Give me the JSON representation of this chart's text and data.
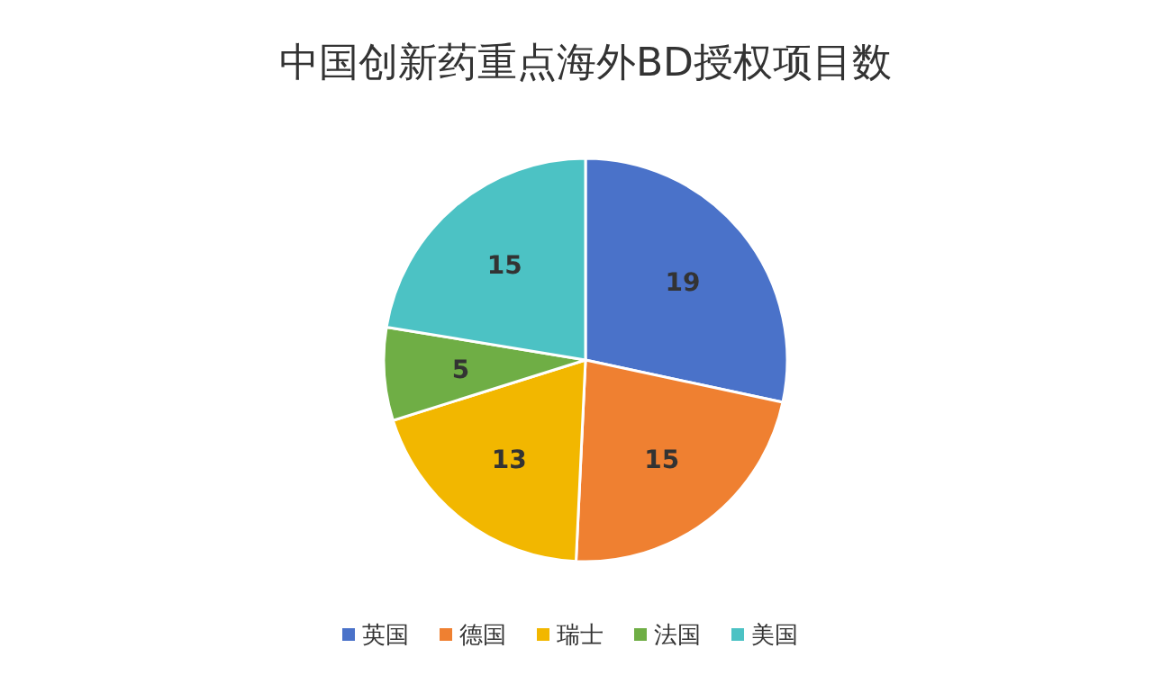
{
  "chart_data": {
    "type": "pie",
    "title": "中国创新药重点海外BD授权项目数",
    "categories": [
      "英国",
      "德国",
      "瑞士",
      "法国",
      "美国"
    ],
    "values": [
      19,
      15,
      13,
      5,
      15
    ],
    "colors": [
      "#4a72c9",
      "#ef8031",
      "#f2b700",
      "#6fae45",
      "#4cc2c4"
    ],
    "data_labels": true,
    "legend": "bottom"
  }
}
